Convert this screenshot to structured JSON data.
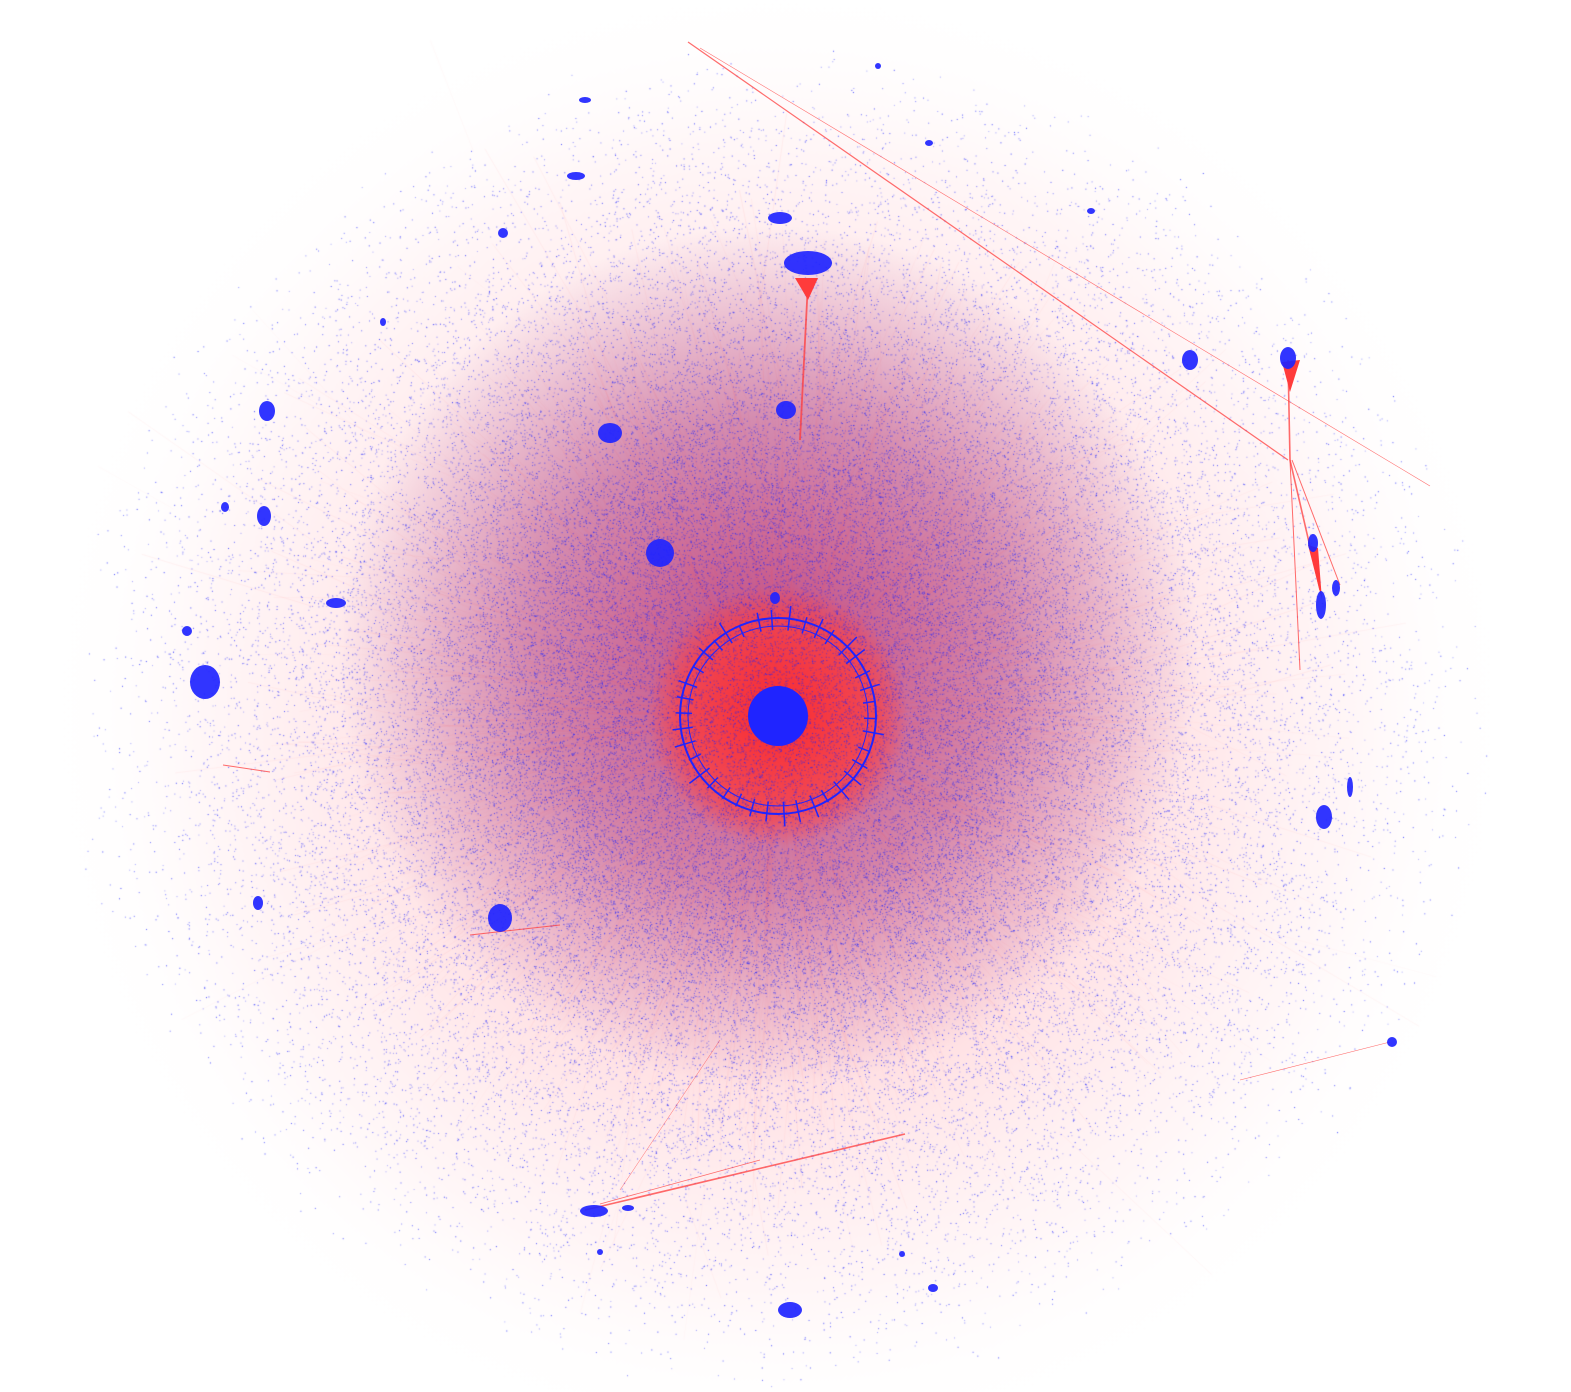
{
  "figure": {
    "type": "network-graph",
    "colors": {
      "background": "#ffffff",
      "node": "#1f24ff",
      "edge": "#ff3b3b",
      "edge_faint": "#ffd0d0",
      "haze_dense": "#a0307a"
    },
    "legend": null,
    "labels": []
  }
}
